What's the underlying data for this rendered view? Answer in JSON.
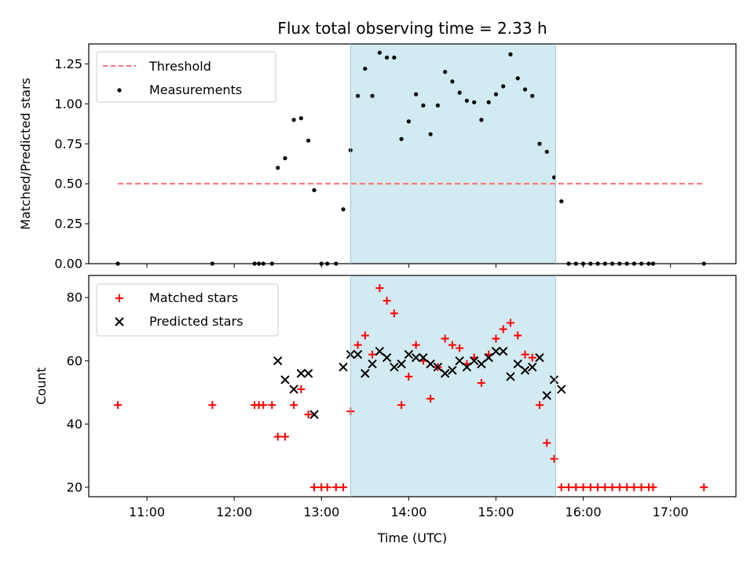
{
  "chart_data": [
    {
      "type": "scatter",
      "title": "Flux total observing time = 2.33 h",
      "xlabel": "",
      "ylabel": "Matched/Predicted stars",
      "xlim": [
        "10:20",
        "17:45"
      ],
      "ylim": [
        0,
        1.375
      ],
      "yticks": [
        "0.00",
        "0.25",
        "0.50",
        "0.75",
        "1.00",
        "1.25"
      ],
      "grid": false,
      "legend_position": "top-left",
      "observing_window": [
        "13:20",
        "15:41"
      ],
      "observing_window_color": "#add8e6",
      "threshold": {
        "name": "Threshold",
        "value": 0.5,
        "x_range": [
          "10:40",
          "17:23"
        ],
        "color": "#ff7070",
        "style": "dashed"
      },
      "series": [
        {
          "name": "Measurements",
          "color": "#000000",
          "marker": "dot",
          "points": [
            [
              "10:40",
              0.0
            ],
            [
              "11:45",
              0.0
            ],
            [
              "12:14",
              0.0
            ],
            [
              "12:17",
              0.0
            ],
            [
              "12:20",
              0.0
            ],
            [
              "12:26",
              0.0
            ],
            [
              "12:30",
              0.6
            ],
            [
              "12:35",
              0.66
            ],
            [
              "12:41",
              0.9
            ],
            [
              "12:46",
              0.91
            ],
            [
              "12:51",
              0.77
            ],
            [
              "12:55",
              0.46
            ],
            [
              "13:00",
              0.0
            ],
            [
              "13:04",
              0.0
            ],
            [
              "13:10",
              0.0
            ],
            [
              "13:15",
              0.34
            ],
            [
              "13:20",
              0.71
            ],
            [
              "13:25",
              1.05
            ],
            [
              "13:30",
              1.22
            ],
            [
              "13:35",
              1.05
            ],
            [
              "13:40",
              1.32
            ],
            [
              "13:45",
              1.29
            ],
            [
              "13:50",
              1.29
            ],
            [
              "13:55",
              0.78
            ],
            [
              "14:00",
              0.89
            ],
            [
              "14:05",
              1.06
            ],
            [
              "14:10",
              0.99
            ],
            [
              "14:15",
              0.81
            ],
            [
              "14:20",
              0.99
            ],
            [
              "14:25",
              1.2
            ],
            [
              "14:30",
              1.14
            ],
            [
              "14:35",
              1.07
            ],
            [
              "14:40",
              1.02
            ],
            [
              "14:45",
              1.01
            ],
            [
              "14:50",
              0.9
            ],
            [
              "14:55",
              1.01
            ],
            [
              "15:00",
              1.06
            ],
            [
              "15:05",
              1.11
            ],
            [
              "15:10",
              1.31
            ],
            [
              "15:15",
              1.16
            ],
            [
              "15:20",
              1.09
            ],
            [
              "15:25",
              1.05
            ],
            [
              "15:30",
              0.75
            ],
            [
              "15:35",
              0.7
            ],
            [
              "15:40",
              0.54
            ],
            [
              "15:45",
              0.39
            ],
            [
              "15:50",
              0.0
            ],
            [
              "15:55",
              0.0
            ],
            [
              "16:00",
              0.0
            ],
            [
              "16:05",
              0.0
            ],
            [
              "16:10",
              0.0
            ],
            [
              "16:15",
              0.0
            ],
            [
              "16:20",
              0.0
            ],
            [
              "16:25",
              0.0
            ],
            [
              "16:30",
              0.0
            ],
            [
              "16:35",
              0.0
            ],
            [
              "16:40",
              0.0
            ],
            [
              "16:45",
              0.0
            ],
            [
              "16:48",
              0.0
            ],
            [
              "17:23",
              0.0
            ]
          ]
        }
      ]
    },
    {
      "type": "scatter",
      "title": "",
      "xlabel": "Time (UTC)",
      "ylabel": "Count",
      "xlim": [
        "10:20",
        "17:45"
      ],
      "ylim": [
        17,
        87
      ],
      "yticks": [
        "20",
        "40",
        "60",
        "80"
      ],
      "xticks": [
        "11:00",
        "12:00",
        "13:00",
        "14:00",
        "15:00",
        "16:00",
        "17:00"
      ],
      "grid": false,
      "legend_position": "top-left",
      "observing_window": [
        "13:20",
        "15:41"
      ],
      "observing_window_color": "#add8e6",
      "series": [
        {
          "name": "Matched stars",
          "color": "#ff0000",
          "marker": "plus",
          "points": [
            [
              "10:40",
              46
            ],
            [
              "11:45",
              46
            ],
            [
              "12:14",
              46
            ],
            [
              "12:17",
              46
            ],
            [
              "12:20",
              46
            ],
            [
              "12:26",
              46
            ],
            [
              "12:30",
              36
            ],
            [
              "12:35",
              36
            ],
            [
              "12:41",
              46
            ],
            [
              "12:46",
              51
            ],
            [
              "12:51",
              43
            ],
            [
              "12:55",
              20
            ],
            [
              "13:00",
              20
            ],
            [
              "13:04",
              20
            ],
            [
              "13:10",
              20
            ],
            [
              "13:15",
              20
            ],
            [
              "13:20",
              44
            ],
            [
              "13:25",
              65
            ],
            [
              "13:30",
              68
            ],
            [
              "13:35",
              62
            ],
            [
              "13:40",
              83
            ],
            [
              "13:45",
              79
            ],
            [
              "13:50",
              75
            ],
            [
              "13:55",
              46
            ],
            [
              "14:00",
              55
            ],
            [
              "14:05",
              65
            ],
            [
              "14:10",
              60
            ],
            [
              "14:15",
              48
            ],
            [
              "14:20",
              58
            ],
            [
              "14:25",
              67
            ],
            [
              "14:30",
              65
            ],
            [
              "14:35",
              64
            ],
            [
              "14:40",
              59
            ],
            [
              "14:45",
              61
            ],
            [
              "14:50",
              53
            ],
            [
              "14:55",
              62
            ],
            [
              "15:00",
              67
            ],
            [
              "15:05",
              70
            ],
            [
              "15:10",
              72
            ],
            [
              "15:15",
              68
            ],
            [
              "15:20",
              62
            ],
            [
              "15:25",
              61
            ],
            [
              "15:30",
              46
            ],
            [
              "15:35",
              34
            ],
            [
              "15:40",
              29
            ],
            [
              "15:45",
              20
            ],
            [
              "15:50",
              20
            ],
            [
              "15:55",
              20
            ],
            [
              "16:00",
              20
            ],
            [
              "16:05",
              20
            ],
            [
              "16:10",
              20
            ],
            [
              "16:15",
              20
            ],
            [
              "16:20",
              20
            ],
            [
              "16:25",
              20
            ],
            [
              "16:30",
              20
            ],
            [
              "16:35",
              20
            ],
            [
              "16:40",
              20
            ],
            [
              "16:45",
              20
            ],
            [
              "16:48",
              20
            ],
            [
              "17:23",
              20
            ]
          ]
        },
        {
          "name": "Predicted stars",
          "color": "#000000",
          "marker": "x",
          "points": [
            [
              "12:30",
              60
            ],
            [
              "12:35",
              54
            ],
            [
              "12:41",
              51
            ],
            [
              "12:46",
              56
            ],
            [
              "12:51",
              56
            ],
            [
              "12:55",
              43
            ],
            [
              "13:15",
              58
            ],
            [
              "13:20",
              62
            ],
            [
              "13:25",
              62
            ],
            [
              "13:30",
              56
            ],
            [
              "13:35",
              59
            ],
            [
              "13:40",
              63
            ],
            [
              "13:45",
              61
            ],
            [
              "13:50",
              58
            ],
            [
              "13:55",
              59
            ],
            [
              "14:00",
              62
            ],
            [
              "14:05",
              61
            ],
            [
              "14:10",
              61
            ],
            [
              "14:15",
              59
            ],
            [
              "14:20",
              58
            ],
            [
              "14:25",
              56
            ],
            [
              "14:30",
              57
            ],
            [
              "14:35",
              60
            ],
            [
              "14:40",
              58
            ],
            [
              "14:45",
              60
            ],
            [
              "14:50",
              59
            ],
            [
              "14:55",
              61
            ],
            [
              "15:00",
              63
            ],
            [
              "15:05",
              63
            ],
            [
              "15:10",
              55
            ],
            [
              "15:15",
              59
            ],
            [
              "15:20",
              57
            ],
            [
              "15:25",
              58
            ],
            [
              "15:30",
              61
            ],
            [
              "15:35",
              49
            ],
            [
              "15:40",
              54
            ],
            [
              "15:45",
              51
            ]
          ]
        }
      ]
    }
  ]
}
